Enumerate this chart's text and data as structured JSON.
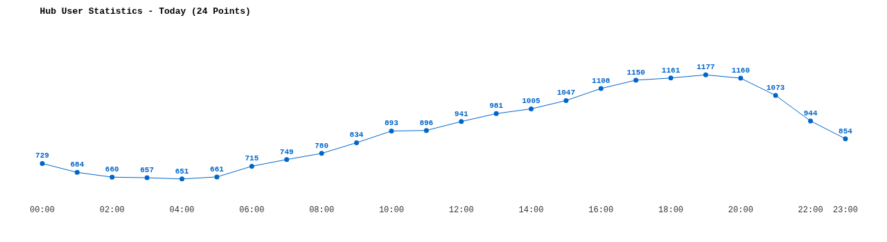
{
  "chart_data": {
    "type": "line",
    "title": "Hub User Statistics - Today (24 Points)",
    "x": [
      0,
      1,
      2,
      3,
      4,
      5,
      6,
      7,
      8,
      9,
      10,
      11,
      12,
      13,
      14,
      15,
      16,
      17,
      18,
      19,
      20,
      21,
      22,
      23
    ],
    "series": [
      {
        "color": "#0066cc",
        "values": [
          729,
          684,
          660,
          657,
          651,
          661,
          715,
          749,
          780,
          834,
          893,
          896,
          941,
          981,
          1005,
          1047,
          1108,
          1150,
          1161,
          1177,
          1160,
          1073,
          944,
          854
        ]
      }
    ],
    "xlim": [
      0,
      23
    ],
    "xticks": [
      {
        "value": 0,
        "label": "00:00"
      },
      {
        "value": 2,
        "label": "02:00"
      },
      {
        "value": 4,
        "label": "04:00"
      },
      {
        "value": 6,
        "label": "06:00"
      },
      {
        "value": 8,
        "label": "08:00"
      },
      {
        "value": 10,
        "label": "10:00"
      },
      {
        "value": 12,
        "label": "12:00"
      },
      {
        "value": 14,
        "label": "14:00"
      },
      {
        "value": 16,
        "label": "16:00"
      },
      {
        "value": 18,
        "label": "18:00"
      },
      {
        "value": 20,
        "label": "20:00"
      },
      {
        "value": 22,
        "label": "22:00"
      },
      {
        "value": 23,
        "label": "23:00"
      }
    ],
    "tick_labels": "x",
    "grid": false,
    "marker": "circle",
    "line_style": "solid",
    "data_labels": true
  }
}
